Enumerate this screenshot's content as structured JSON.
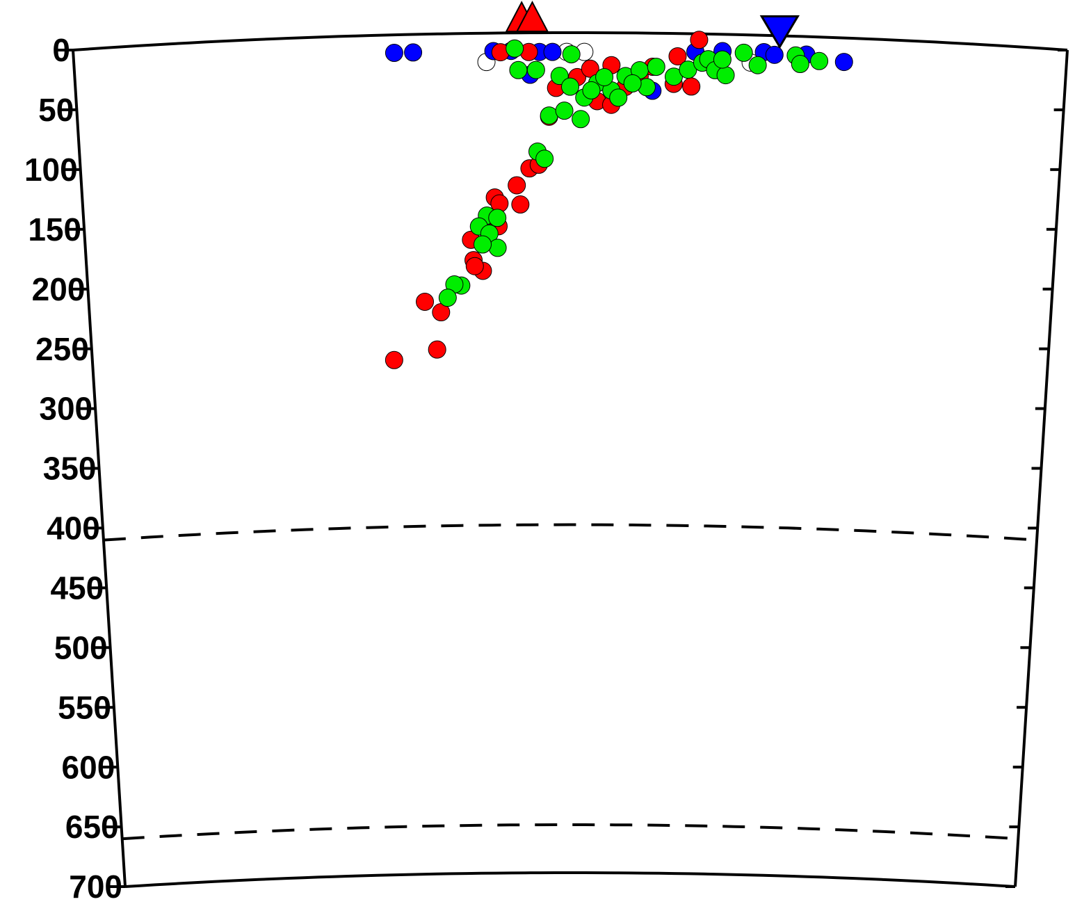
{
  "chart_data": {
    "type": "scatter",
    "xlim": [
      0,
      840
    ],
    "ylim": [
      0,
      700
    ],
    "yticks": [
      0,
      50,
      100,
      150,
      200,
      250,
      300,
      350,
      400,
      450,
      500,
      550,
      600,
      650,
      700
    ],
    "reference_depths": [
      410,
      660
    ],
    "volcanoes": {
      "x": [
        379,
        388
      ],
      "color": "#ff0000"
    },
    "trench": {
      "x": [
        597
      ],
      "color": "#0000ff"
    },
    "series": [
      {
        "color": "#ffffff",
        "x": [
          349,
          417,
          432,
          573
        ],
        "values": [
          24,
          16,
          16,
          23
        ]
      },
      {
        "color": "#0000ff",
        "x": [
          271,
          287,
          355,
          370,
          394,
          405,
          386,
          490,
          526,
          549,
          584,
          593,
          620,
          652
        ],
        "values": [
          15,
          15,
          15,
          15,
          16,
          16,
          35,
          48,
          15,
          14,
          14,
          16,
          15,
          20
        ]
      },
      {
        "color": "#ff0000",
        "x": [
          265,
          303,
          293,
          307,
          344,
          336,
          337,
          334,
          358,
          354,
          355,
          359,
          374,
          377,
          385,
          393,
          402,
          408,
          426,
          443,
          455,
          467,
          479,
          490,
          508,
          523,
          529,
          511,
          385,
          361,
          437,
          455
        ],
        "values": [
          271,
          263,
          223,
          232,
          198,
          189,
          194,
          172,
          161,
          153,
          137,
          142,
          127,
          143,
          113,
          110,
          70,
          46,
          37,
          57,
          60,
          45,
          36,
          28,
          42,
          44,
          5,
          19,
          16,
          16,
          30,
          27
        ]
      },
      {
        "color": "#00ee00",
        "x": [
          373,
          376,
          391,
          411,
          421,
          402,
          415,
          429,
          392,
          398,
          348,
          357,
          341,
          350,
          357,
          344,
          325,
          319,
          313,
          420,
          432,
          443,
          455,
          467,
          479,
          485,
          493,
          508,
          520,
          532,
          537,
          543,
          552,
          549,
          567,
          579,
          611,
          615,
          631,
          438,
          449,
          461,
          473
        ],
        "values": [
          13,
          31,
          31,
          36,
          18,
          69,
          65,
          72,
          99,
          105,
          152,
          154,
          161,
          167,
          179,
          176,
          210,
          209,
          220,
          45,
          54,
          42,
          48,
          36,
          31,
          45,
          28,
          36,
          30,
          24,
          21,
          30,
          34,
          21,
          15,
          25,
          16,
          23,
          20,
          48,
          37,
          54,
          42
        ]
      }
    ]
  }
}
